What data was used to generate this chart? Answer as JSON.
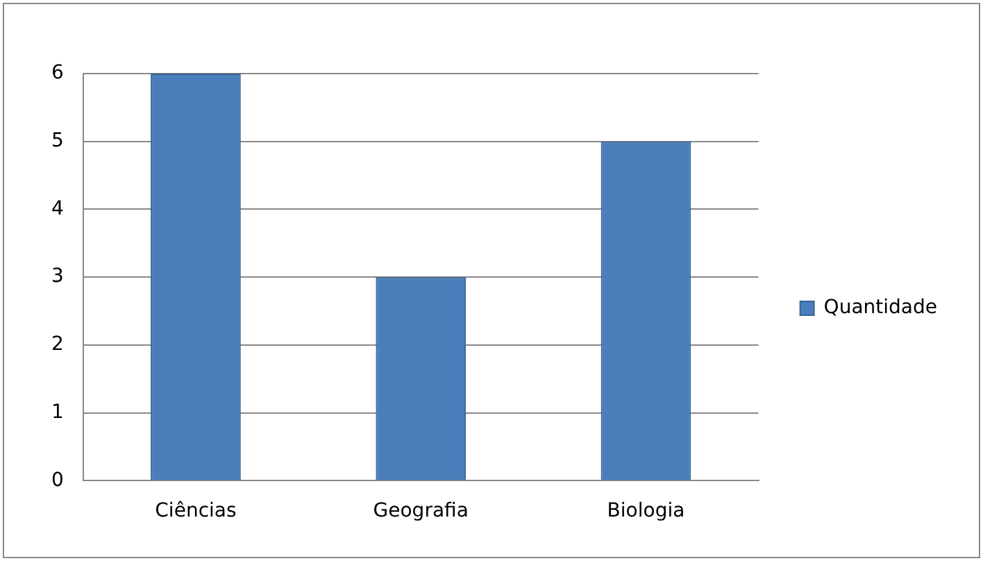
{
  "chart_data": {
    "type": "bar",
    "categories": [
      "Ciências",
      "Geografia",
      "Biologia"
    ],
    "series": [
      {
        "name": "Quantidade",
        "color": "#4a7ebb",
        "values": [
          6,
          3,
          5
        ]
      }
    ],
    "ylim": [
      0,
      6
    ],
    "yticks": [
      0,
      1,
      2,
      3,
      4,
      5,
      6
    ],
    "grid": "y",
    "legend": "right"
  }
}
